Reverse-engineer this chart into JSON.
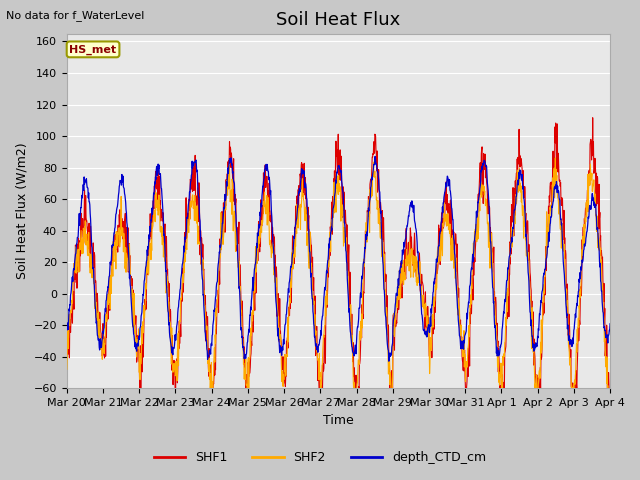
{
  "title": "Soil Heat Flux",
  "top_left_text": "No data for f_WaterLevel",
  "station_label": "HS_met",
  "ylabel": "Soil Heat Flux (W/m2)",
  "xlabel": "Time",
  "ylim": [
    -60,
    165
  ],
  "yticks": [
    -60,
    -40,
    -20,
    0,
    20,
    40,
    60,
    80,
    100,
    120,
    140,
    160
  ],
  "xtick_labels": [
    "Mar 20",
    "Mar 21",
    "Mar 22",
    "Mar 23",
    "Mar 24",
    "Mar 25",
    "Mar 26",
    "Mar 27",
    "Mar 28",
    "Mar 29",
    "Mar 30",
    "Mar 31",
    "Apr 1",
    "Apr 2",
    "Apr 3",
    "Apr 4"
  ],
  "legend_labels": [
    "SHF1",
    "SHF2",
    "depth_CTD_cm"
  ],
  "shf1_color": "#dd0000",
  "shf2_color": "#ffaa00",
  "depth_color": "#0000cc",
  "fig_bg_color": "#c8c8c8",
  "ax_bg_color": "#e8e8e8",
  "grid_color": "#ffffff",
  "title_fontsize": 13,
  "axis_label_fontsize": 9,
  "tick_fontsize": 8
}
